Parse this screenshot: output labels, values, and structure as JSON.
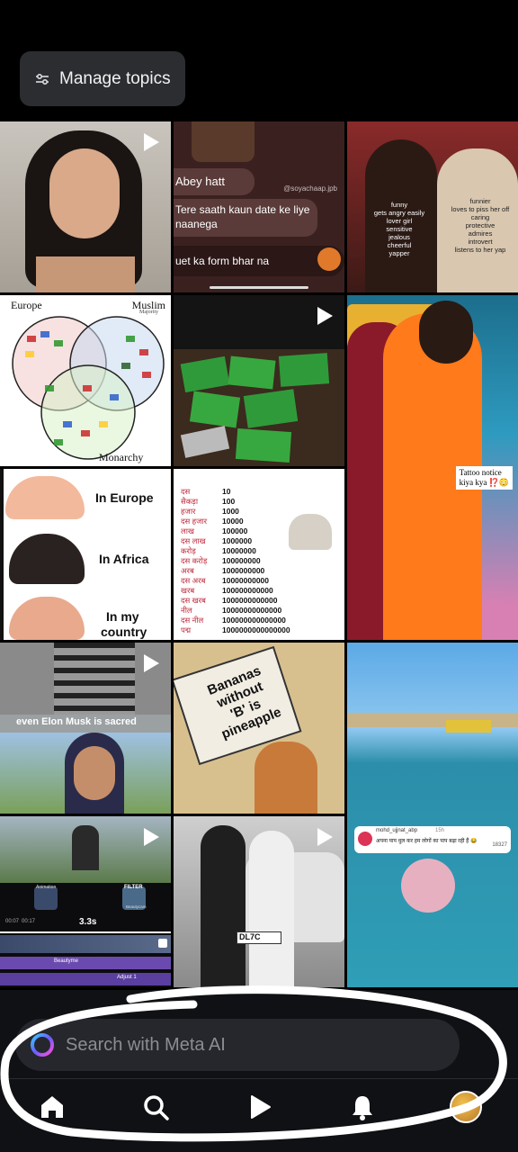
{
  "header": {
    "manage_topics_label": "Manage topics"
  },
  "tiles": {
    "t2": {
      "watermark": "@soyachaap.jpb",
      "msg1": "Abey hatt",
      "msg2": "Tere saath kaun date ke liye naanega",
      "msg3": "uet ka form bhar na"
    },
    "t3": {
      "left": [
        "funny",
        "gets angry easily",
        "lover girl",
        "sensitive",
        "jealous",
        "cheerful",
        "yapper"
      ],
      "right": [
        "funnier",
        "loves to piss her off",
        "caring",
        "protective",
        "admires",
        "introvert",
        "listens to her yap"
      ]
    },
    "t4": {
      "europe": "Europe",
      "muslim": "Muslim",
      "majority": "Majority",
      "monarchy": "Monarchy"
    },
    "t6": {
      "caption_line1": "Tattoo notice",
      "caption_line2": "kiya kya ⁉️😳"
    },
    "t7": {
      "l1": "In Europe",
      "l2": "In Africa",
      "l3a": "In my",
      "l3b": "country"
    },
    "t8": {
      "rows": [
        [
          "दस",
          "10"
        ],
        [
          "सैकड़ा",
          "100"
        ],
        [
          "हजार",
          "1000"
        ],
        [
          "दस हजार",
          "10000"
        ],
        [
          "लाख",
          "100000"
        ],
        [
          "दस लाख",
          "1000000"
        ],
        [
          "करोड़",
          "10000000"
        ],
        [
          "दस करोड़",
          "100000000"
        ],
        [
          "अरब",
          "1000000000"
        ],
        [
          "दस अरब",
          "10000000000"
        ],
        [
          "खरब",
          "100000000000"
        ],
        [
          "दस खरब",
          "1000000000000"
        ],
        [
          "नील",
          "10000000000000"
        ],
        [
          "दस नील",
          "100000000000000"
        ],
        [
          "पद्म",
          "1000000000000000"
        ]
      ]
    },
    "t10": {
      "caption": "even Elon Musk is sacred"
    },
    "t11": {
      "line1": "Bananas",
      "line2": "without",
      "line3": "'B' is",
      "line4": "pineapple"
    },
    "t12": {
      "comment_user": "mohd_ujjnat_abp",
      "comment_time": "15h",
      "comment_text": "अपना पाप धुल कर हम लोगों का पाप बढ़ा रही हैं 😂",
      "likes": "18327"
    },
    "t13": {
      "label_a": "Animation",
      "label_b": "FILTER",
      "label_c": "Beautycam",
      "timer": "3.3s",
      "time_a": "00:07",
      "time_b": "00:17",
      "track_a": "Beautyme",
      "track_b": "Adjust 1"
    },
    "t14": {
      "plate": "DL7C"
    }
  },
  "search": {
    "placeholder": "Search with Meta AI"
  },
  "nav": {
    "items": [
      "home-icon",
      "search-icon",
      "reels-icon",
      "notifications-icon",
      "profile-avatar"
    ]
  },
  "colors": {
    "bg": "#000000",
    "chip": "#2b2d31",
    "searchbar": "#25272c",
    "nav_bg": "#101114"
  }
}
